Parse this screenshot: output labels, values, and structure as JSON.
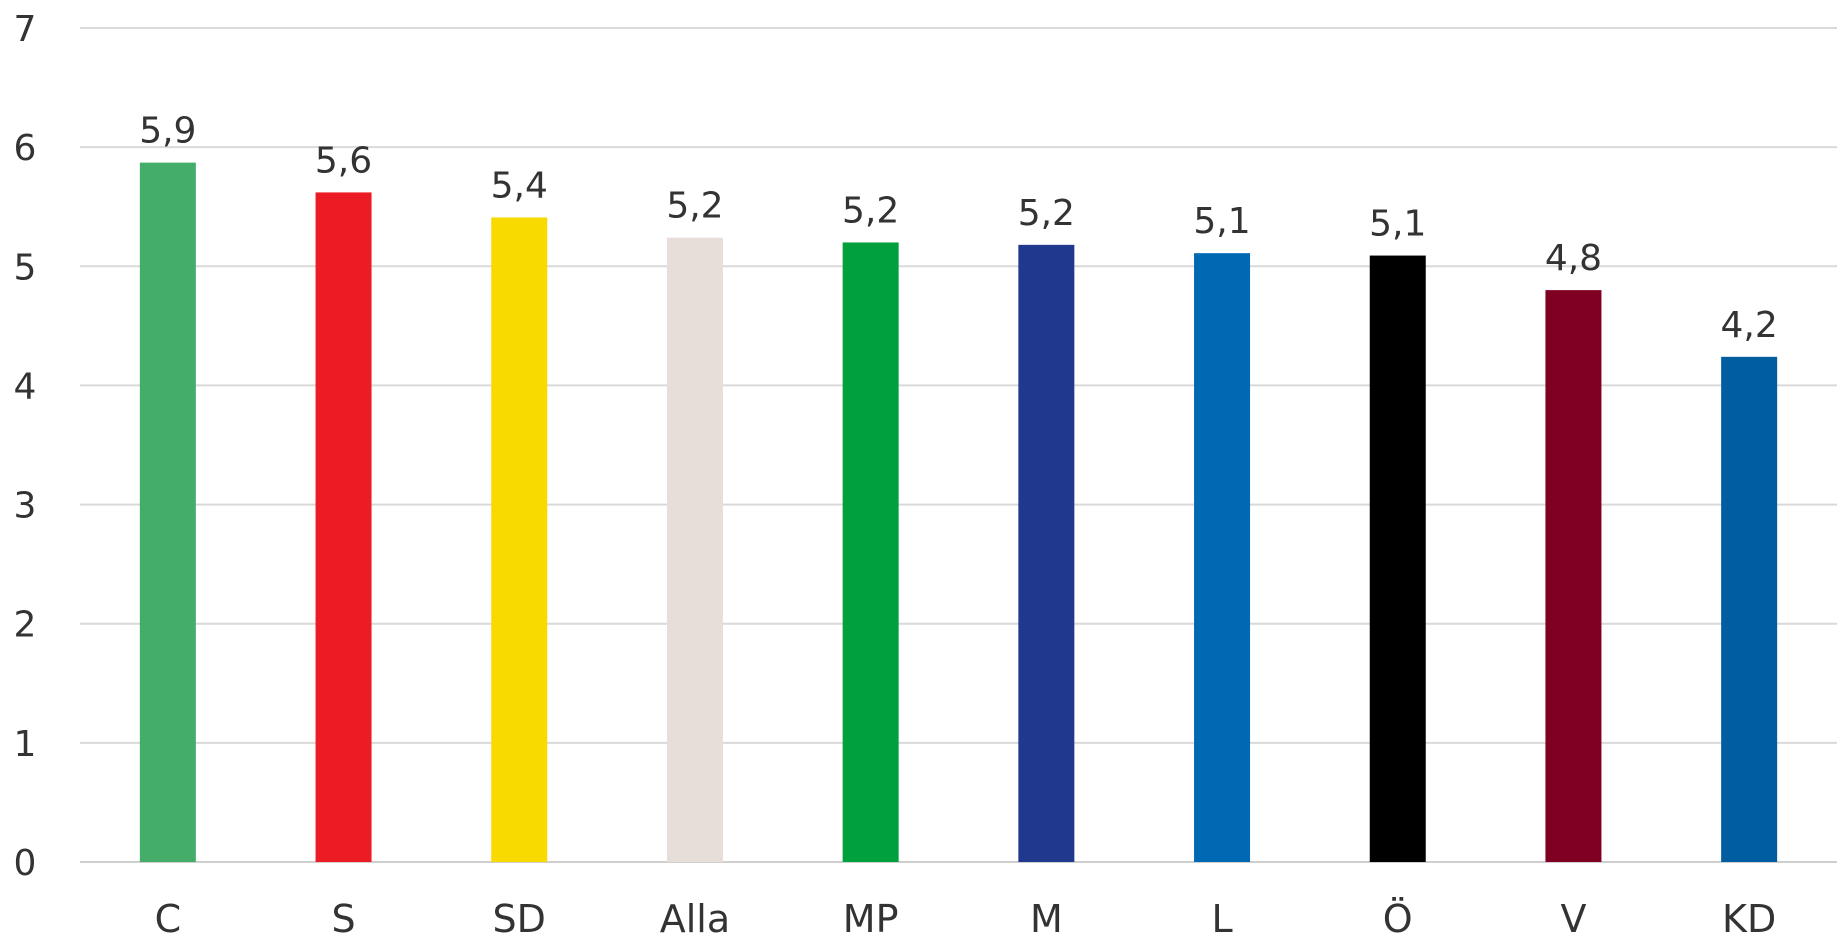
{
  "chart_data": {
    "type": "bar",
    "categories": [
      "C",
      "S",
      "SD",
      "Alla",
      "MP",
      "M",
      "L",
      "Ö",
      "V",
      "KD"
    ],
    "values": [
      5.87,
      5.62,
      5.41,
      5.24,
      5.2,
      5.18,
      5.11,
      5.09,
      4.8,
      4.24
    ],
    "data_labels": [
      "5,9",
      "5,6",
      "5,4",
      "5,2",
      "5,2",
      "5,2",
      "5,1",
      "5,1",
      "4,8",
      "4,2"
    ],
    "colors": [
      "#43ad69",
      "#ec1c24",
      "#f9da00",
      "#e7ddd9",
      "#00a03c",
      "#20388d",
      "#0069b4",
      "#000000",
      "#7f0020",
      "#005da0"
    ],
    "ylim": [
      0,
      7
    ],
    "yticks": [
      "0",
      "1",
      "2",
      "3",
      "4",
      "5",
      "6",
      "7"
    ],
    "grid": true,
    "title": "",
    "xlabel": "",
    "ylabel": ""
  }
}
